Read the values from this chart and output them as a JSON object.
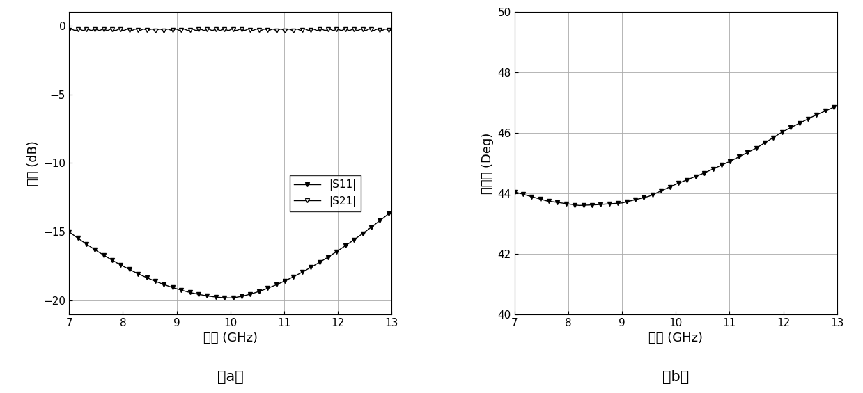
{
  "freq_start": 7,
  "freq_end": 13,
  "freq_points": 300,
  "chart_a": {
    "ylabel": "幅度 (dB)",
    "xlabel": "频率 (GHz)",
    "ylim": [
      -21,
      1
    ],
    "xlim": [
      7,
      13
    ],
    "yticks": [
      0,
      -5,
      -10,
      -15,
      -20
    ],
    "xticks": [
      7,
      8,
      9,
      10,
      11,
      12,
      13
    ],
    "legend_labels": [
      "|S11|",
      "|S21|"
    ],
    "caption": "（a）",
    "S21_level": -0.3,
    "S11_min": -19.8,
    "S11_min_freq": 10.0,
    "S11_at7": -15.0,
    "S11_at13": -13.5
  },
  "chart_b": {
    "ylabel": "相位差 (Deg)",
    "xlabel": "频率 (GHz)",
    "ylim": [
      40,
      50
    ],
    "xlim": [
      7,
      13
    ],
    "yticks": [
      40,
      42,
      44,
      46,
      48,
      50
    ],
    "xticks": [
      7,
      8,
      9,
      10,
      11,
      12,
      13
    ],
    "caption": "（b）",
    "phase_knots_x": [
      7.0,
      7.3,
      7.6,
      8.0,
      8.2,
      8.5,
      9.0,
      9.5,
      10.0,
      10.5,
      11.0,
      11.5,
      12.0,
      12.5,
      13.0
    ],
    "phase_knots_y": [
      44.05,
      43.9,
      43.75,
      43.65,
      43.6,
      43.62,
      43.68,
      43.9,
      44.3,
      44.65,
      45.05,
      45.5,
      46.05,
      46.5,
      46.9
    ]
  },
  "line_color": "#000000",
  "marker": "v",
  "markersize": 4,
  "markevery": 8,
  "grid_color": "#aaaaaa",
  "grid_linewidth": 0.6,
  "axis_linewidth": 0.8,
  "font_size_label": 13,
  "font_size_tick": 11,
  "font_size_legend": 11,
  "font_size_caption": 15
}
